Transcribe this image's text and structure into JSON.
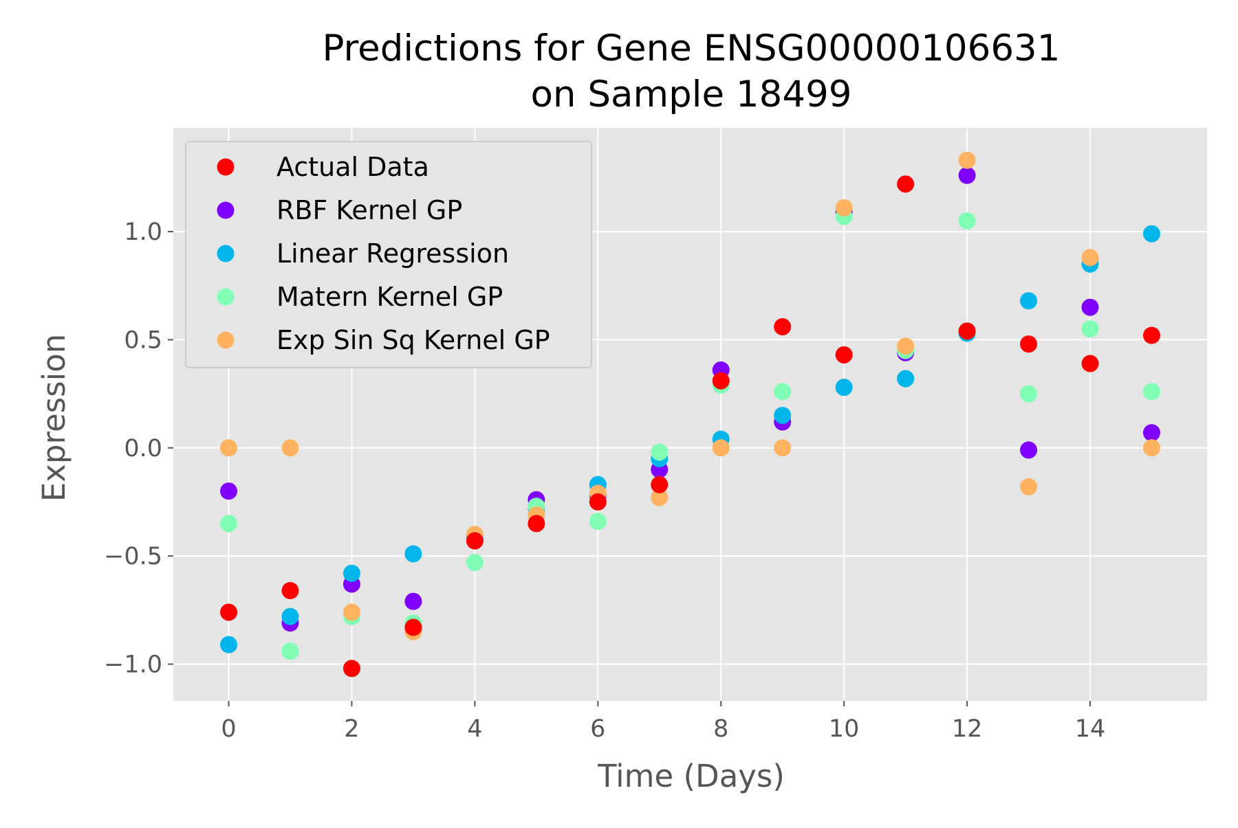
{
  "chart_data": {
    "type": "scatter",
    "title": [
      "Predictions for Gene ENSG00000106631",
      "on Sample 18499"
    ],
    "xlabel": "Time (Days)",
    "ylabel": "Expression",
    "xlim": [
      -0.9,
      15.9
    ],
    "ylim": [
      -1.17,
      1.48
    ],
    "x_ticks": [
      0,
      2,
      4,
      6,
      8,
      10,
      12,
      14
    ],
    "y_ticks": [
      1.0,
      0.5,
      0.0,
      -0.5,
      -1.0
    ],
    "x_tick_labels": [
      "0",
      "2",
      "4",
      "6",
      "8",
      "10",
      "12",
      "14"
    ],
    "y_tick_labels": [
      "1.0",
      "0.5",
      "0.0",
      "−0.5",
      "−1.0"
    ],
    "grid": true,
    "legend_position": "top-left",
    "background": "#e5e5e5",
    "series": [
      {
        "name": "RBF Kernel GP",
        "color": "#8000ff",
        "x": [
          0,
          1,
          2,
          3,
          4,
          5,
          6,
          7,
          8,
          9,
          10,
          11,
          12,
          13,
          14,
          15
        ],
        "y": [
          -0.2,
          -0.81,
          -0.63,
          -0.71,
          -0.41,
          -0.24,
          -0.22,
          -0.1,
          0.36,
          0.12,
          1.09,
          0.44,
          1.26,
          -0.01,
          0.65,
          0.07
        ]
      },
      {
        "name": "Linear Regression",
        "color": "#00b5eb",
        "x": [
          0,
          1,
          2,
          3,
          4,
          5,
          6,
          7,
          8,
          9,
          10,
          11,
          12,
          13,
          14,
          15
        ],
        "y": [
          -0.91,
          -0.78,
          -0.58,
          -0.49,
          -0.42,
          -0.28,
          -0.17,
          -0.05,
          0.04,
          0.15,
          0.28,
          0.32,
          0.53,
          0.68,
          0.85,
          0.99
        ]
      },
      {
        "name": "Matern Kernel GP",
        "color": "#80ffb4",
        "x": [
          0,
          1,
          2,
          3,
          4,
          5,
          6,
          7,
          8,
          9,
          10,
          11,
          12,
          13,
          14,
          15
        ],
        "y": [
          -0.35,
          -0.94,
          -0.78,
          -0.81,
          -0.53,
          -0.27,
          -0.34,
          -0.02,
          0.29,
          0.26,
          1.07,
          0.45,
          1.05,
          0.25,
          0.55,
          0.26
        ]
      },
      {
        "name": "Exp Sin Sq Kernel GP",
        "color": "#ffb360",
        "x": [
          0,
          1,
          2,
          3,
          4,
          5,
          6,
          7,
          8,
          9,
          10,
          11,
          12,
          13,
          14,
          15
        ],
        "y": [
          0.0,
          0.0,
          -0.76,
          -0.85,
          -0.4,
          -0.31,
          -0.21,
          -0.23,
          0.0,
          0.0,
          1.11,
          0.47,
          1.33,
          -0.18,
          0.88,
          0.0
        ]
      },
      {
        "name": "Actual Data",
        "color": "#ff0000",
        "x": [
          0,
          1,
          2,
          3,
          4,
          5,
          6,
          7,
          8,
          9,
          10,
          11,
          12,
          13,
          14,
          15
        ],
        "y": [
          -0.76,
          -0.66,
          -1.02,
          -0.83,
          -0.43,
          -0.35,
          -0.25,
          -0.17,
          0.31,
          0.56,
          0.43,
          1.22,
          0.54,
          0.48,
          0.39,
          0.52
        ]
      }
    ],
    "legend_order": [
      "Actual Data",
      "RBF Kernel GP",
      "Linear Regression",
      "Matern Kernel GP",
      "Exp Sin Sq Kernel GP"
    ]
  }
}
